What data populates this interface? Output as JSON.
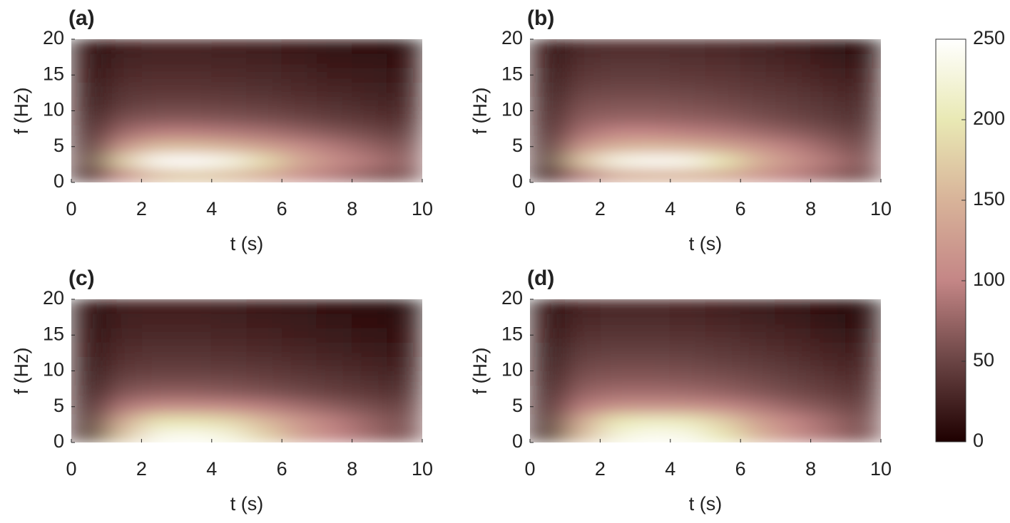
{
  "chart_data": [
    {
      "type": "heatmap",
      "title": "(a)",
      "xlabel": "t (s)",
      "ylabel": "f (Hz)",
      "x": [
        0.5,
        1.5,
        2.5,
        3.5,
        4.5,
        5.5,
        6.5,
        7.5,
        8.5,
        9.5
      ],
      "y": [
        1,
        3,
        5,
        7,
        9,
        11,
        13,
        15,
        17,
        19
      ],
      "z": [
        [
          20,
          110,
          160,
          170,
          160,
          140,
          110,
          90,
          70,
          60
        ],
        [
          40,
          180,
          245,
          250,
          235,
          190,
          140,
          110,
          90,
          70
        ],
        [
          30,
          120,
          160,
          160,
          150,
          130,
          110,
          90,
          75,
          60
        ],
        [
          25,
          80,
          95,
          95,
          90,
          85,
          75,
          65,
          55,
          45
        ],
        [
          20,
          60,
          65,
          65,
          62,
          58,
          52,
          45,
          40,
          32
        ],
        [
          18,
          45,
          50,
          50,
          48,
          45,
          40,
          35,
          30,
          25
        ],
        [
          15,
          38,
          40,
          40,
          38,
          35,
          32,
          28,
          24,
          20
        ],
        [
          12,
          32,
          34,
          34,
          32,
          30,
          27,
          23,
          20,
          16
        ],
        [
          10,
          27,
          29,
          29,
          27,
          25,
          22,
          18,
          15,
          12
        ],
        [
          8,
          23,
          25,
          25,
          23,
          20,
          17,
          14,
          10,
          6
        ]
      ],
      "xlim": [
        0,
        10
      ],
      "ylim": [
        0,
        20
      ],
      "xticks": [
        0,
        2,
        4,
        6,
        8,
        10
      ],
      "yticks": [
        0,
        5,
        10,
        15,
        20
      ]
    },
    {
      "type": "heatmap",
      "title": "(b)",
      "xlabel": "t (s)",
      "ylabel": "f (Hz)",
      "x": [
        0.5,
        1.5,
        2.5,
        3.5,
        4.5,
        5.5,
        6.5,
        7.5,
        8.5,
        9.5
      ],
      "y": [
        1,
        3,
        5,
        7,
        9,
        11,
        13,
        15,
        17,
        19
      ],
      "z": [
        [
          15,
          90,
          140,
          150,
          150,
          140,
          115,
          95,
          75,
          55
        ],
        [
          35,
          170,
          235,
          245,
          240,
          200,
          150,
          115,
          90,
          65
        ],
        [
          30,
          120,
          150,
          155,
          150,
          135,
          115,
          95,
          75,
          55
        ],
        [
          25,
          85,
          100,
          100,
          95,
          90,
          80,
          70,
          58,
          45
        ],
        [
          22,
          70,
          75,
          75,
          72,
          68,
          60,
          52,
          44,
          35
        ],
        [
          20,
          60,
          62,
          62,
          60,
          56,
          50,
          44,
          38,
          30
        ],
        [
          18,
          50,
          52,
          52,
          50,
          47,
          42,
          38,
          32,
          25
        ],
        [
          15,
          42,
          44,
          44,
          42,
          40,
          36,
          32,
          26,
          20
        ],
        [
          12,
          36,
          38,
          38,
          36,
          34,
          30,
          26,
          20,
          14
        ],
        [
          10,
          30,
          32,
          32,
          30,
          28,
          24,
          20,
          14,
          6
        ]
      ],
      "xlim": [
        0,
        10
      ],
      "ylim": [
        0,
        20
      ],
      "xticks": [
        0,
        2,
        4,
        6,
        8,
        10
      ],
      "yticks": [
        0,
        5,
        10,
        15,
        20
      ]
    },
    {
      "type": "heatmap",
      "title": "(c)",
      "xlabel": "t (s)",
      "ylabel": "f (Hz)",
      "x": [
        0.5,
        1.5,
        2.5,
        3.5,
        4.5,
        5.5,
        6.5,
        7.5,
        8.5,
        9.5
      ],
      "y": [
        1,
        3,
        5,
        7,
        9,
        11,
        13,
        15,
        17,
        19
      ],
      "z": [
        [
          25,
          170,
          235,
          240,
          225,
          180,
          130,
          100,
          80,
          60
        ],
        [
          25,
          140,
          195,
          195,
          185,
          155,
          120,
          95,
          75,
          58
        ],
        [
          20,
          90,
          110,
          110,
          105,
          95,
          82,
          70,
          58,
          48
        ],
        [
          18,
          65,
          72,
          72,
          68,
          62,
          55,
          48,
          42,
          35
        ],
        [
          16,
          50,
          54,
          54,
          52,
          48,
          43,
          38,
          33,
          27
        ],
        [
          14,
          40,
          43,
          43,
          41,
          38,
          34,
          30,
          26,
          21
        ],
        [
          12,
          34,
          36,
          36,
          34,
          31,
          28,
          24,
          20,
          16
        ],
        [
          10,
          29,
          30,
          30,
          28,
          26,
          23,
          19,
          16,
          12
        ],
        [
          9,
          25,
          26,
          26,
          24,
          22,
          19,
          15,
          12,
          8
        ],
        [
          8,
          22,
          23,
          23,
          21,
          18,
          15,
          11,
          8,
          5
        ]
      ],
      "xlim": [
        0,
        10
      ],
      "ylim": [
        0,
        20
      ],
      "xticks": [
        0,
        2,
        4,
        6,
        8,
        10
      ],
      "yticks": [
        0,
        5,
        10,
        15,
        20
      ]
    },
    {
      "type": "heatmap",
      "title": "(d)",
      "xlabel": "t (s)",
      "ylabel": "f (Hz)",
      "x": [
        0.5,
        1.5,
        2.5,
        3.5,
        4.5,
        5.5,
        6.5,
        7.5,
        8.5,
        9.5
      ],
      "y": [
        1,
        3,
        5,
        7,
        9,
        11,
        13,
        15,
        17,
        19
      ],
      "z": [
        [
          20,
          160,
          225,
          240,
          235,
          200,
          150,
          110,
          85,
          60
        ],
        [
          25,
          140,
          200,
          210,
          205,
          175,
          130,
          100,
          80,
          58
        ],
        [
          22,
          95,
          115,
          118,
          115,
          105,
          90,
          75,
          62,
          48
        ],
        [
          20,
          75,
          82,
          82,
          80,
          74,
          65,
          56,
          48,
          38
        ],
        [
          18,
          62,
          66,
          66,
          64,
          60,
          54,
          46,
          40,
          32
        ],
        [
          16,
          52,
          55,
          55,
          53,
          49,
          44,
          38,
          32,
          25
        ],
        [
          14,
          44,
          46,
          46,
          44,
          41,
          37,
          32,
          26,
          20
        ],
        [
          12,
          37,
          39,
          39,
          37,
          34,
          30,
          26,
          20,
          14
        ],
        [
          10,
          31,
          33,
          33,
          31,
          28,
          24,
          20,
          14,
          9
        ],
        [
          9,
          26,
          28,
          28,
          26,
          23,
          19,
          15,
          10,
          5
        ]
      ],
      "xlim": [
        0,
        10
      ],
      "ylim": [
        0,
        20
      ],
      "xticks": [
        0,
        2,
        4,
        6,
        8,
        10
      ],
      "yticks": [
        0,
        5,
        10,
        15,
        20
      ]
    }
  ],
  "colorbar": {
    "clim": [
      0,
      250
    ],
    "ticks": [
      0,
      50,
      100,
      150,
      200,
      250
    ],
    "colormap": [
      "#1e0000",
      "#6a4444",
      "#c48686",
      "#d8b399",
      "#e9e9b4",
      "#ffffff"
    ]
  }
}
